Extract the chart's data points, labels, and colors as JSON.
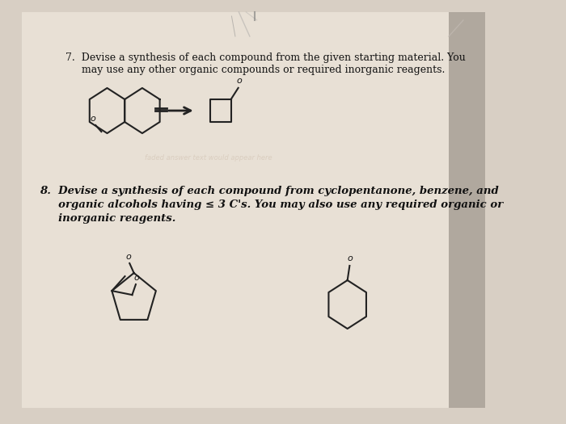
{
  "background_color": "#d8cfc4",
  "page_color": "#e8e0d5",
  "title_7": "7.  Devise a synthesis of each compound from the given starting material. You",
  "title_7b": "     may use any other organic compounds or required inorganic reagents.",
  "title_8": "8.  Devise a synthesis of each compound from cyclopentanone, benzene, and",
  "title_8b": "     organic alcohols having ≤ 3 C's. You may also use any required organic or",
  "title_8c": "     inorganic reagents.",
  "line_color": "#222222",
  "text_color": "#111111",
  "faded_text_color": "#aaaaaa"
}
